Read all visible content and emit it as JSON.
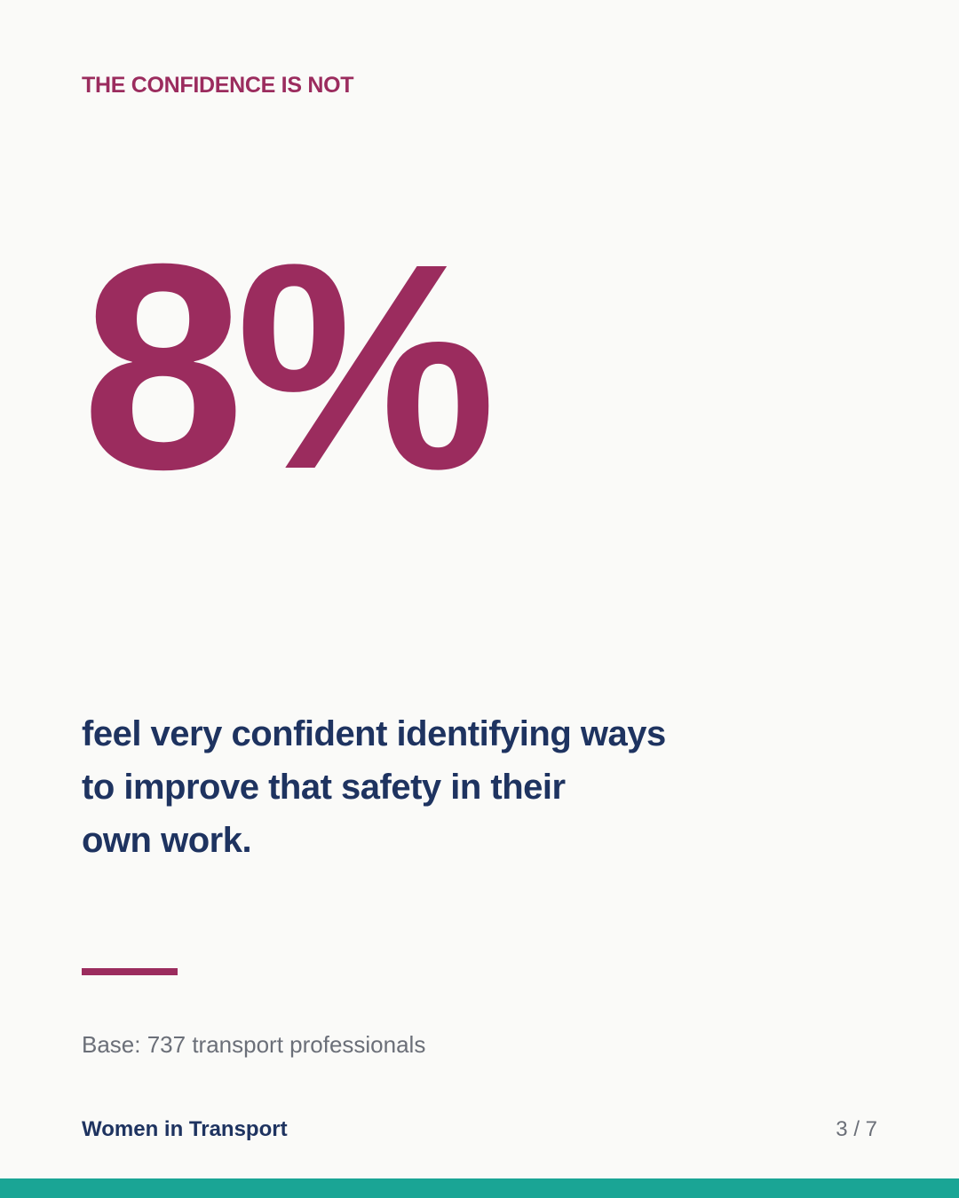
{
  "eyebrow": "THE CONFIDENCE IS NOT",
  "stat": "8%",
  "description": {
    "lines": [
      "feel very confident identifying ways",
      "to improve that safety in their",
      "own work."
    ]
  },
  "base": "Base: 737 transport professionals",
  "footer": {
    "brand": "Women in Transport",
    "page_indicator": "3 / 7"
  }
}
